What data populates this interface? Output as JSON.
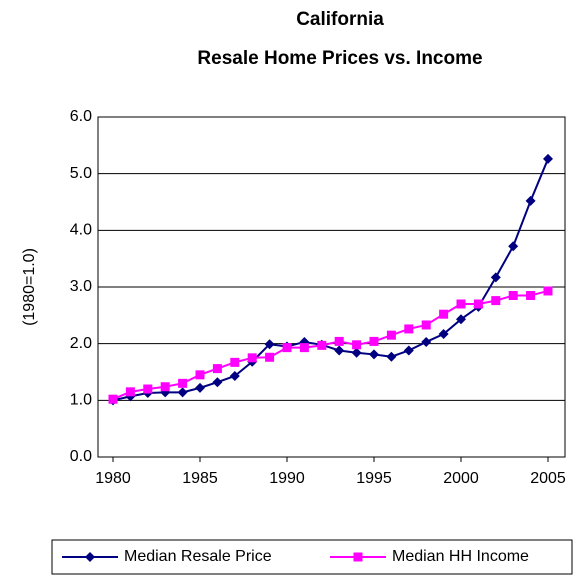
{
  "chart_data": {
    "type": "line",
    "title": [
      "California",
      "Resale Home Prices vs. Income"
    ],
    "y_label": "(1980=1.0)",
    "x": [
      1980,
      1981,
      1982,
      1983,
      1984,
      1985,
      1986,
      1987,
      1988,
      1989,
      1990,
      1991,
      1992,
      1993,
      1994,
      1995,
      1996,
      1997,
      1998,
      1999,
      2000,
      2001,
      2002,
      2003,
      2004,
      2005
    ],
    "series": [
      {
        "name": "Median Resale Price",
        "color": "#000080",
        "marker": "diamond",
        "values": [
          1.0,
          1.07,
          1.13,
          1.14,
          1.14,
          1.22,
          1.32,
          1.43,
          1.68,
          1.99,
          1.95,
          2.03,
          1.98,
          1.88,
          1.84,
          1.81,
          1.77,
          1.88,
          2.03,
          2.17,
          2.43,
          2.65,
          3.17,
          3.72,
          4.52,
          5.26
        ]
      },
      {
        "name": "Median HH Income",
        "color": "#ff00ff",
        "marker": "square",
        "values": [
          1.02,
          1.15,
          1.2,
          1.24,
          1.3,
          1.45,
          1.56,
          1.67,
          1.75,
          1.76,
          1.93,
          1.93,
          1.97,
          2.04,
          1.98,
          2.04,
          2.15,
          2.26,
          2.33,
          2.52,
          2.7,
          2.7,
          2.76,
          2.85,
          2.85,
          2.93
        ]
      }
    ],
    "xlim": [
      1980,
      2005
    ],
    "xticks": [
      1980,
      1985,
      1990,
      1995,
      2000,
      2005
    ],
    "ylim": [
      0,
      6
    ],
    "yticks": [
      {
        "value": 0,
        "label": "0.0"
      },
      {
        "value": 1,
        "label": "1.0"
      },
      {
        "value": 2,
        "label": "2.0"
      },
      {
        "value": 3,
        "label": "3.0"
      },
      {
        "value": 4,
        "label": "4.0"
      },
      {
        "value": 5,
        "label": "5.0"
      },
      {
        "value": 6,
        "label": "6.0"
      }
    ],
    "grid": true,
    "legend": "bottom"
  }
}
